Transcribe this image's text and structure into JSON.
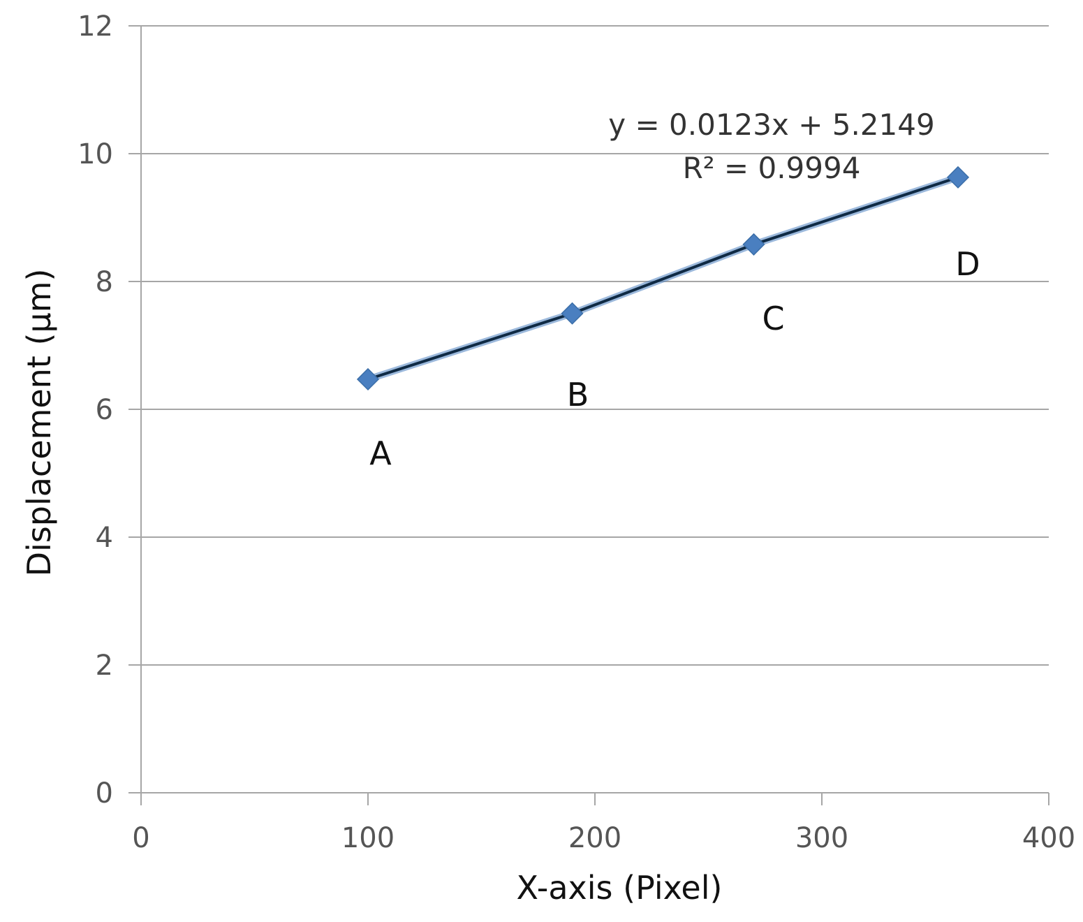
{
  "chart_data": {
    "type": "scatter",
    "title": "",
    "xlabel": "X-axis (Pixel)",
    "ylabel": "Displacement (μm)",
    "xlim": [
      0,
      400
    ],
    "ylim": [
      0,
      12
    ],
    "x_ticks": [
      0,
      100,
      200,
      300,
      400
    ],
    "y_ticks": [
      0,
      2,
      4,
      6,
      8,
      10,
      12
    ],
    "grid": "horizontal",
    "series": [
      {
        "color": "#4a7fc0",
        "trendline_color": "#0f2a44",
        "points": [
          {
            "x": 100,
            "y": 6.47,
            "label": "A"
          },
          {
            "x": 190,
            "y": 7.5,
            "label": "B"
          },
          {
            "x": 270,
            "y": 8.58,
            "label": "C"
          },
          {
            "x": 360,
            "y": 9.63,
            "label": "D"
          }
        ]
      }
    ],
    "trendline": {
      "slope": 0.0123,
      "intercept": 5.2149
    },
    "annotations": [
      "y = 0.0123x + 5.2149",
      "R² = 0.9994"
    ]
  }
}
